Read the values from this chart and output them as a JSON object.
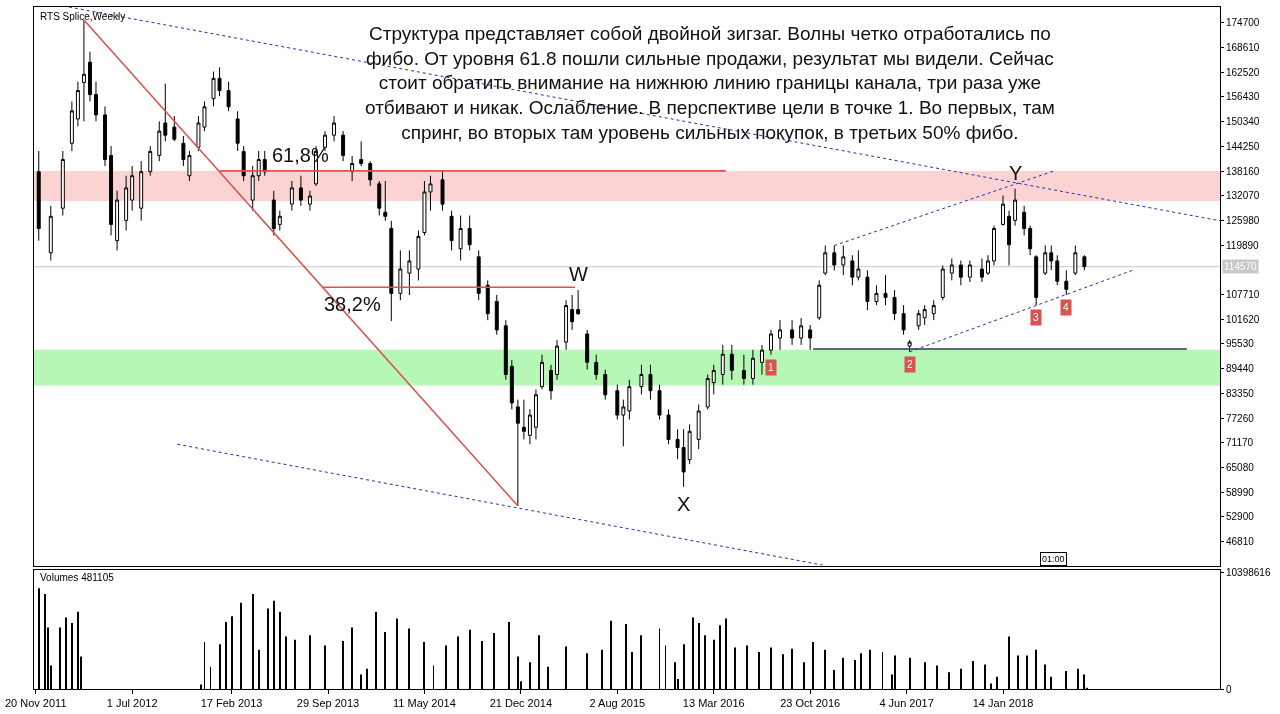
{
  "chart_data": [
    {
      "type": "candlestick",
      "title": "RTS Splice,Weekly",
      "color": "#000000",
      "x": [
        "2011-11-27",
        "2011-12-25",
        "2012-01-22",
        "2012-02-12",
        "2012-02-26",
        "2012-03-11",
        "2012-03-25",
        "2012-04-08",
        "2012-04-29",
        "2012-05-13",
        "2012-05-27",
        "2012-06-17",
        "2012-07-01",
        "2012-07-22",
        "2012-08-12",
        "2012-09-02",
        "2012-09-16",
        "2012-10-07",
        "2012-10-28",
        "2012-11-11",
        "2012-12-02",
        "2012-12-16",
        "2013-01-06",
        "2013-01-20",
        "2013-02-10",
        "2013-03-03",
        "2013-03-17",
        "2013-04-07",
        "2013-04-21",
        "2013-05-05",
        "2013-05-26",
        "2013-06-09",
        "2013-07-07",
        "2013-07-28",
        "2013-08-18",
        "2013-09-01",
        "2013-09-22",
        "2013-10-13",
        "2013-11-03",
        "2013-11-24",
        "2013-12-15",
        "2014-01-05",
        "2014-01-26",
        "2014-02-09",
        "2014-02-23",
        "2014-03-16",
        "2014-04-06",
        "2014-04-27",
        "2014-05-11",
        "2014-05-25",
        "2014-06-22",
        "2014-07-13",
        "2014-08-03",
        "2014-08-24",
        "2014-09-14",
        "2014-10-05",
        "2014-10-26",
        "2014-11-16",
        "2014-11-30",
        "2014-12-14",
        "2014-12-28",
        "2015-01-11",
        "2015-01-25",
        "2015-02-08",
        "2015-03-01",
        "2015-03-15",
        "2015-04-05",
        "2015-04-19",
        "2015-05-03",
        "2015-05-24",
        "2015-06-14",
        "2015-07-05",
        "2015-08-02",
        "2015-08-16",
        "2015-08-30",
        "2015-09-27",
        "2015-10-18",
        "2015-11-08",
        "2015-11-29",
        "2015-12-20",
        "2016-01-03",
        "2016-01-17",
        "2016-02-07",
        "2016-02-28",
        "2016-03-13",
        "2016-04-03",
        "2016-04-24",
        "2016-05-22",
        "2016-06-12",
        "2016-07-03",
        "2016-07-24",
        "2016-08-14",
        "2016-09-11",
        "2016-10-02",
        "2016-10-23",
        "2016-11-13",
        "2016-11-27",
        "2016-12-18",
        "2017-01-08",
        "2017-01-29",
        "2017-02-12",
        "2017-03-05",
        "2017-03-26",
        "2017-04-16",
        "2017-05-07",
        "2017-05-28",
        "2017-06-11",
        "2017-07-02",
        "2017-07-16",
        "2017-08-06",
        "2017-08-27",
        "2017-09-17",
        "2017-10-08",
        "2017-10-29",
        "2017-11-26",
        "2017-12-10",
        "2017-12-24",
        "2018-01-14",
        "2018-01-28",
        "2018-02-11",
        "2018-03-04",
        "2018-03-18",
        "2018-04-01",
        "2018-04-22",
        "2018-05-06",
        "2018-05-20",
        "2018-06-10",
        "2018-07-01",
        "2018-07-22"
      ],
      "ohlc": [
        [
          138000,
          143100,
          121000,
          124000
        ],
        [
          118000,
          129600,
          116100,
          127000
        ],
        [
          129000,
          143100,
          127200,
          141000
        ],
        [
          145000,
          155300,
          143100,
          153000
        ],
        [
          151000,
          160200,
          149200,
          158000
        ],
        [
          160000,
          175400,
          150400,
          162000
        ],
        [
          165000,
          167600,
          155300,
          157000
        ],
        [
          157000,
          160200,
          150400,
          152000
        ],
        [
          152000,
          154100,
          139400,
          141000
        ],
        [
          142000,
          144300,
          122300,
          125000
        ],
        [
          121000,
          133300,
          118600,
          131000
        ],
        [
          126000,
          137000,
          123500,
          134000
        ],
        [
          131000,
          139400,
          128400,
          137000
        ],
        [
          129000,
          140600,
          125900,
          138000
        ],
        [
          138000,
          144300,
          137000,
          143000
        ],
        [
          142000,
          150400,
          140600,
          148000
        ],
        [
          150000,
          159700,
          145500,
          147000
        ],
        [
          149000,
          151700,
          145500,
          146000
        ],
        [
          145000,
          146800,
          139400,
          141000
        ],
        [
          137000,
          143100,
          135700,
          142000
        ],
        [
          144000,
          151700,
          143100,
          150000
        ],
        [
          149000,
          155300,
          148000,
          154000
        ],
        [
          156000,
          162700,
          154100,
          161000
        ],
        [
          161000,
          163700,
          156600,
          158000
        ],
        [
          158000,
          160200,
          152900,
          154000
        ],
        [
          151000,
          152900,
          143100,
          145000
        ],
        [
          143000,
          144300,
          135700,
          137000
        ],
        [
          131000,
          139400,
          128400,
          137000
        ],
        [
          137000,
          143100,
          135700,
          141000
        ],
        [
          141000,
          143100,
          137000,
          138000
        ],
        [
          131000,
          133300,
          122300,
          124000
        ],
        [
          125000,
          128400,
          123500,
          127000
        ],
        [
          130000,
          135700,
          128400,
          134000
        ],
        [
          134000,
          137000,
          129600,
          131000
        ],
        [
          130000,
          133300,
          128400,
          132000
        ],
        [
          135000,
          144300,
          134500,
          143000
        ],
        [
          144000,
          148000,
          143100,
          147000
        ],
        [
          147000,
          151700,
          145500,
          150000
        ],
        [
          147000,
          148000,
          140600,
          142000
        ],
        [
          138000,
          141900,
          135700,
          140000
        ],
        [
          141000,
          145500,
          139400,
          140000
        ],
        [
          140000,
          140600,
          134500,
          136000
        ],
        [
          135000,
          135700,
          127200,
          129000
        ],
        [
          128000,
          135700,
          125900,
          127000
        ],
        [
          124000,
          125900,
          101200,
          108000
        ],
        [
          108000,
          118600,
          106300,
          114000
        ],
        [
          113000,
          118600,
          107600,
          116000
        ],
        [
          114000,
          123500,
          111200,
          122000
        ],
        [
          123000,
          135700,
          122300,
          133000
        ],
        [
          133000,
          137000,
          128400,
          135000
        ],
        [
          136000,
          138200,
          128400,
          130000
        ],
        [
          127000,
          128400,
          118600,
          121000
        ],
        [
          119000,
          127200,
          116100,
          124000
        ],
        [
          124000,
          127200,
          118600,
          120000
        ],
        [
          117000,
          118600,
          106300,
          108000
        ],
        [
          110000,
          111200,
          101400,
          103000
        ],
        [
          106000,
          107600,
          97800,
          99000
        ],
        [
          100000,
          101400,
          86700,
          88000
        ],
        [
          90000,
          91600,
          79400,
          81000
        ],
        [
          80000,
          81800,
          55600,
          76000
        ],
        [
          75000,
          81800,
          72000,
          74000
        ],
        [
          73000,
          79400,
          70800,
          78000
        ],
        [
          75000,
          84300,
          72000,
          83000
        ],
        [
          85000,
          92900,
          84300,
          91000
        ],
        [
          89000,
          90400,
          81800,
          84000
        ],
        [
          88000,
          96500,
          86700,
          95000
        ],
        [
          96000,
          106300,
          94100,
          105000
        ],
        [
          104000,
          107600,
          99000,
          101000
        ],
        [
          104000,
          108800,
          102700,
          103000
        ],
        [
          98000,
          99000,
          89200,
          91000
        ],
        [
          91000,
          92900,
          86700,
          88000
        ],
        [
          88000,
          89200,
          81800,
          83000
        ],
        [
          84000,
          85500,
          76900,
          78000
        ],
        [
          78000,
          81800,
          70300,
          80000
        ],
        [
          79000,
          86700,
          76900,
          85000
        ],
        [
          85000,
          90400,
          83100,
          88000
        ],
        [
          88000,
          90400,
          81800,
          84000
        ],
        [
          84000,
          85500,
          76900,
          78000
        ],
        [
          78000,
          79400,
          70800,
          72000
        ],
        [
          72000,
          74500,
          67100,
          70000
        ],
        [
          70000,
          74500,
          60300,
          64000
        ],
        [
          67000,
          75700,
          65900,
          74000
        ],
        [
          72000,
          80600,
          69600,
          79000
        ],
        [
          80000,
          88000,
          79400,
          87000
        ],
        [
          86000,
          90400,
          83100,
          89000
        ],
        [
          88000,
          95300,
          85500,
          93000
        ],
        [
          93000,
          95300,
          86700,
          89000
        ],
        [
          89000,
          92900,
          85500,
          87000
        ],
        [
          87000,
          94100,
          85500,
          92000
        ],
        [
          91000,
          95300,
          88000,
          94000
        ],
        [
          94000,
          99000,
          92900,
          98000
        ],
        [
          97000,
          101400,
          94100,
          99000
        ],
        [
          99000,
          101400,
          95300,
          97000
        ],
        [
          97000,
          101900,
          95300,
          100000
        ],
        [
          99000,
          100200,
          94100,
          97000
        ],
        [
          102000,
          111200,
          101400,
          110000
        ],
        [
          113000,
          119800,
          112500,
          118000
        ],
        [
          118000,
          119800,
          113700,
          115000
        ],
        [
          115000,
          119800,
          112500,
          117000
        ],
        [
          116000,
          117400,
          110000,
          112000
        ],
        [
          112000,
          118600,
          111200,
          114000
        ],
        [
          112000,
          113700,
          103900,
          106000
        ],
        [
          106000,
          110000,
          105100,
          108000
        ],
        [
          108000,
          112500,
          105100,
          107000
        ],
        [
          107000,
          108800,
          101400,
          103000
        ],
        [
          103000,
          105100,
          97800,
          99000
        ],
        [
          95000,
          96500,
          93600,
          96000
        ],
        [
          100000,
          103900,
          99000,
          103000
        ],
        [
          102000,
          105100,
          100200,
          104000
        ],
        [
          103000,
          106300,
          101400,
          105000
        ],
        [
          107000,
          114900,
          106300,
          114000
        ],
        [
          113000,
          116600,
          111200,
          115000
        ],
        [
          115000,
          116100,
          110000,
          112000
        ],
        [
          112000,
          116100,
          110800,
          115000
        ],
        [
          114000,
          116600,
          110800,
          112000
        ],
        [
          113000,
          117400,
          112500,
          116000
        ],
        [
          116000,
          124700,
          114900,
          124000
        ],
        [
          125000,
          132100,
          124700,
          130000
        ],
        [
          127000,
          128400,
          114900,
          120000
        ],
        [
          126000,
          133800,
          124700,
          131000
        ],
        [
          128000,
          129600,
          122300,
          124000
        ],
        [
          124000,
          124700,
          117400,
          119000
        ],
        [
          117000,
          117400,
          105100,
          107000
        ],
        [
          113000,
          119800,
          112500,
          118000
        ],
        [
          118000,
          119800,
          113700,
          116000
        ],
        [
          116000,
          117400,
          110000,
          111000
        ],
        [
          111000,
          113700,
          107600,
          109000
        ],
        [
          113000,
          119800,
          112500,
          118000
        ],
        [
          117000,
          117400,
          113700,
          114600
        ]
      ],
      "series": [
        {
          "type": "line",
          "x": [
            "2012-03-11",
            "2014-12-14"
          ],
          "values": [
            175400,
            55600
          ],
          "color": "#d9534f",
          "line_style": "solid"
        },
        {
          "type": "line",
          "x": [
            "2013-01-20",
            "2016-04-10"
          ],
          "values": [
            138200,
            138200
          ],
          "color": "#d9534f",
          "line_style": "solid"
        },
        {
          "type": "line",
          "x": [
            "2013-09-15",
            "2015-04-26"
          ],
          "values": [
            109500,
            109500
          ],
          "color": "#d9534f",
          "line_style": "solid"
        },
        {
          "type": "line",
          "x": [
            "2012-02-05",
            "2019-06-02"
          ],
          "values": [
            178600,
            125900
          ],
          "color": "#2233aa",
          "line_style": "dotted"
        },
        {
          "type": "line",
          "x": [
            "2012-10-14",
            "2016-11-27"
          ],
          "values": [
            70800,
            40900
          ],
          "color": "#2233aa",
          "line_style": "dotted"
        },
        {
          "type": "line",
          "x": [
            "2017-06-11",
            "2018-11-11"
          ],
          "values": [
            93600,
            113700
          ],
          "color": "#2233aa",
          "line_style": "dotted"
        },
        {
          "type": "line",
          "x": [
            "2016-12-18",
            "2018-05-13"
          ],
          "values": [
            119800,
            138200
          ],
          "color": "#2233aa",
          "line_style": "dotted"
        },
        {
          "type": "line",
          "x": [
            "2016-10-30",
            "2019-03-17"
          ],
          "values": [
            94300,
            94300
          ],
          "color": "#1a3a5a",
          "line_style": "solid"
        }
      ],
      "bands": [
        {
          "axis": "y",
          "from": 130800,
          "to": 138200,
          "color": "#fbd3d3"
        },
        {
          "axis": "y",
          "from": 85300,
          "to": 94100,
          "color": "#b6f7b6"
        }
      ],
      "ref_lines": [
        {
          "axis": "y",
          "value": 114570,
          "label": "114570",
          "color": "#c8c8c8"
        }
      ],
      "annotations": [
        "Структура представляет собой двойной зигзаг. Волны четко отработались по\nфибо. От уровня 61.8 пошли сильные продажи, результат мы видели. Сейчас\nстоит обратить внимание на нижнюю линию границы канала, три раза уже\nотбивают и никак. Ослабление. В перспективе цели в точке 1. Во первых, там\nспринг, во вторых там уровень сильных покупок, в третьих 50% фибо.",
        "01:00",
        {
          "text": "61,8%",
          "x": "2013-07-28",
          "y": 138200
        },
        {
          "text": "38,2%",
          "x": "2013-11-24",
          "y": 109500
        },
        {
          "text": "W",
          "x": "2015-05-03",
          "y": 108800
        },
        {
          "text": "X",
          "x": "2016-01-03",
          "y": 60300
        },
        {
          "text": "Y",
          "x": "2018-02-11",
          "y": 133800
        },
        {
          "text": "1",
          "x": "2016-07-24",
          "y": 92900
        },
        {
          "text": "2",
          "x": "2017-06-11",
          "y": 93600
        },
        {
          "text": "3",
          "x": "2018-04-01",
          "y": 105100
        },
        {
          "text": "4",
          "x": "2018-06-10",
          "y": 107600
        }
      ],
      "xlim": [
        "2011-11-16",
        "2019-06-02"
      ],
      "ylim": [
        40900,
        178600
      ],
      "yticks": [
        174700,
        168610,
        162520,
        156430,
        150340,
        144250,
        138160,
        132070,
        125980,
        119890,
        107710,
        101620,
        95530,
        89440,
        83350,
        77260,
        71170,
        65080,
        58990,
        52900,
        46810
      ],
      "tick_labels": "y",
      "grid": false
    },
    {
      "type": "bar",
      "title": "Volumes 481105",
      "color": "#000000",
      "x": [
        "2011-11-27",
        "2011-12-11",
        "2011-12-18",
        "2011-12-25",
        "2012-01-15",
        "2012-01-29",
        "2012-02-12",
        "2012-02-26",
        "2012-03-04",
        "2012-12-09",
        "2012-12-16",
        "2012-12-30",
        "2013-01-20",
        "2013-02-03",
        "2013-02-17",
        "2013-03-10",
        "2013-04-07",
        "2013-04-21",
        "2013-05-12",
        "2013-05-26",
        "2013-06-09",
        "2013-06-23",
        "2013-07-14",
        "2013-08-18",
        "2013-09-22",
        "2013-11-03",
        "2013-11-24",
        "2013-12-15",
        "2013-12-29",
        "2014-01-19",
        "2014-02-09",
        "2014-03-09",
        "2014-04-06",
        "2014-05-11",
        "2014-06-01",
        "2014-06-29",
        "2014-07-27",
        "2014-08-24",
        "2014-09-21",
        "2014-10-19",
        "2014-11-23",
        "2014-12-14",
        "2014-12-21",
        "2015-01-11",
        "2015-02-01",
        "2015-02-22",
        "2015-04-05",
        "2015-05-24",
        "2015-06-28",
        "2015-07-19",
        "2015-08-23",
        "2015-09-06",
        "2015-09-27",
        "2015-11-08",
        "2015-11-22",
        "2015-12-13",
        "2015-12-20",
        "2016-01-03",
        "2016-01-24",
        "2016-02-07",
        "2016-02-21",
        "2016-03-13",
        "2016-03-27",
        "2016-04-10",
        "2016-05-01",
        "2016-05-29",
        "2016-06-26",
        "2016-07-24",
        "2016-08-21",
        "2016-09-11",
        "2016-10-09",
        "2016-10-30",
        "2016-11-27",
        "2016-12-18",
        "2017-01-08",
        "2017-02-05",
        "2017-02-19",
        "2017-03-12",
        "2017-04-09",
        "2017-04-30",
        "2017-05-07",
        "2017-06-11",
        "2017-07-16",
        "2017-08-13",
        "2017-09-10",
        "2017-10-08",
        "2017-11-05",
        "2017-12-03",
        "2017-12-17",
        "2017-12-31",
        "2018-01-28",
        "2018-02-18",
        "2018-03-11",
        "2018-04-01",
        "2018-04-22",
        "2018-05-06",
        "2018-06-10",
        "2018-07-08",
        "2018-07-22",
        "2018-07-29"
      ],
      "values": [
        9000000,
        8500000,
        5500000,
        2100000,
        5500000,
        6400000,
        5900000,
        6900000,
        2900000,
        400000,
        4200000,
        2000000,
        4000000,
        6000000,
        6500000,
        7700000,
        8500000,
        3500000,
        7200000,
        7900000,
        6900000,
        4700000,
        4400000,
        4800000,
        3900000,
        4300000,
        5500000,
        1300000,
        1800000,
        6900000,
        5100000,
        6300000,
        5400000,
        4200000,
        2100000,
        3900000,
        4700000,
        5300000,
        4300000,
        5000000,
        6000000,
        2900000,
        700000,
        2400000,
        4800000,
        2000000,
        3800000,
        3200000,
        3500000,
        6100000,
        5800000,
        3300000,
        4800000,
        5400000,
        3900000,
        2400000,
        900000,
        4000000,
        6400000,
        5900000,
        4800000,
        4400000,
        5700000,
        6300000,
        3700000,
        3900000,
        3300000,
        3700000,
        3100000,
        3600000,
        2400000,
        4200000,
        3500000,
        1700000,
        2800000,
        2600000,
        3200000,
        3500000,
        3300000,
        1300000,
        3000000,
        2800000,
        2400000,
        2100000,
        1500000,
        1800000,
        2500000,
        2200000,
        500000,
        1100000,
        4700000,
        3000000,
        3000000,
        3500000,
        2200000,
        1100000,
        1600000,
        1800000,
        1300000,
        100000
      ],
      "xlim": [
        "2011-11-16",
        "2019-06-02"
      ],
      "xticks": [
        {
          "value": "2011-11-20",
          "label": "20 Nov 2011"
        },
        {
          "value": "2012-07-01",
          "label": "1 Jul 2012"
        },
        {
          "value": "2013-02-17",
          "label": "17 Feb 2013"
        },
        {
          "value": "2013-09-29",
          "label": "29 Sep 2013"
        },
        {
          "value": "2014-05-11",
          "label": "11 May 2014"
        },
        {
          "value": "2014-12-21",
          "label": "21 Dec 2014"
        },
        {
          "value": "2015-08-02",
          "label": "2 Aug 2015"
        },
        {
          "value": "2016-03-13",
          "label": "13 Mar 2016"
        },
        {
          "value": "2016-10-23",
          "label": "23 Oct 2016"
        },
        {
          "value": "2017-06-04",
          "label": "4 Jun 2017"
        },
        {
          "value": "2018-01-14",
          "label": "14 Jan 2018"
        }
      ],
      "ylim": [
        0,
        10670000
      ],
      "yticks": [
        0,
        10398616
      ],
      "grid": false
    }
  ]
}
